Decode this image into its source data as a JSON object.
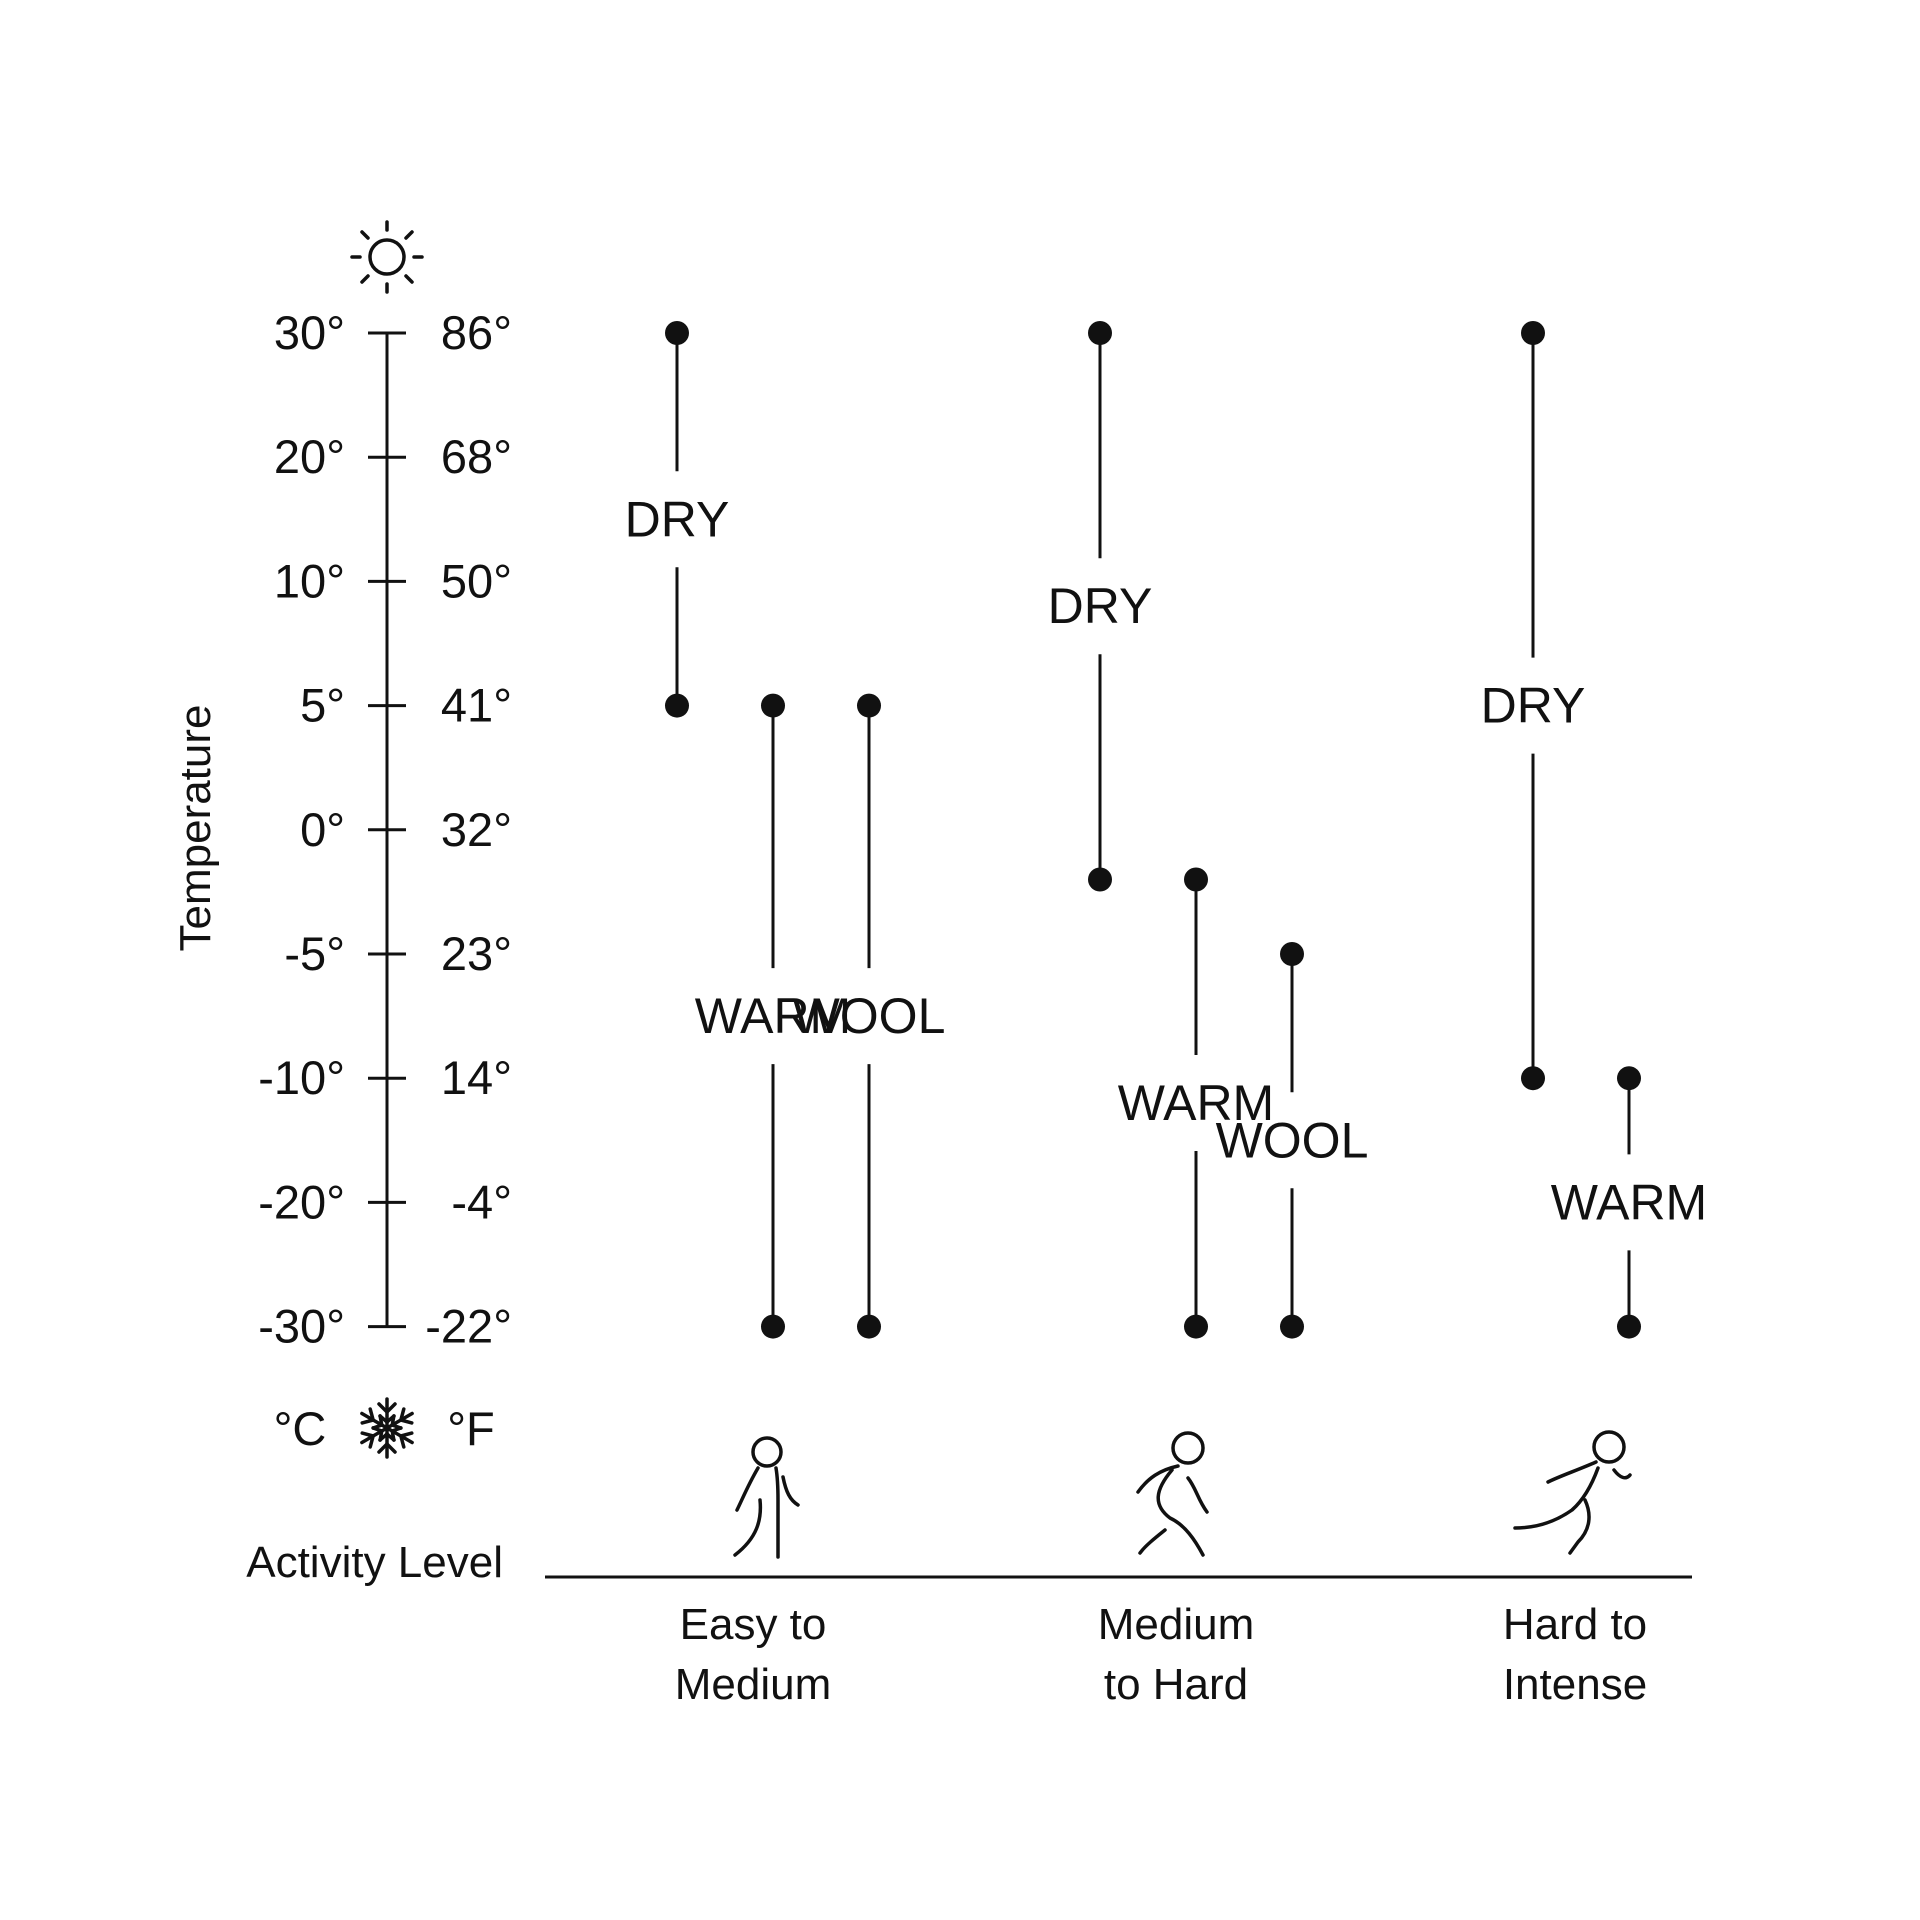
{
  "chart_data": {
    "type": "range",
    "ylabel": "Temperature",
    "xlabel": "Activity Level",
    "units": {
      "celsius": "°C",
      "fahrenheit": "°F"
    },
    "top_icon": "sun-icon",
    "bottom_icon": "snowflake-icon",
    "ticks": [
      {
        "c": "30°",
        "f": "86°"
      },
      {
        "c": "20°",
        "f": "68°"
      },
      {
        "c": "10°",
        "f": "50°"
      },
      {
        "c": "5°",
        "f": "41°"
      },
      {
        "c": "0°",
        "f": "32°"
      },
      {
        "c": "-5°",
        "f": "23°"
      },
      {
        "c": "-10°",
        "f": "14°"
      },
      {
        "c": "-20°",
        "f": "-4°"
      },
      {
        "c": "-30°",
        "f": "-22°"
      }
    ],
    "categories": [
      {
        "lines": [
          "Easy to",
          "Medium"
        ],
        "icon": "walking-person-icon",
        "ranges": [
          {
            "name": "DRY",
            "max": 30,
            "min": 5
          },
          {
            "name": "WARM",
            "max": 5,
            "min": -30
          },
          {
            "name": "WOOL",
            "max": 5,
            "min": -30
          }
        ]
      },
      {
        "lines": [
          "Medium",
          "to Hard"
        ],
        "icon": "jogging-person-icon",
        "ranges": [
          {
            "name": "DRY",
            "max": 30,
            "min": -2
          },
          {
            "name": "WARM",
            "max": -2,
            "min": -30
          },
          {
            "name": "WOOL",
            "max": -5,
            "min": -30
          }
        ]
      },
      {
        "lines": [
          "Hard to",
          "Intense"
        ],
        "icon": "sprinting-person-icon",
        "ranges": [
          {
            "name": "DRY",
            "max": 30,
            "min": -10
          },
          {
            "name": "WARM",
            "max": -10,
            "min": -30
          }
        ]
      }
    ]
  }
}
